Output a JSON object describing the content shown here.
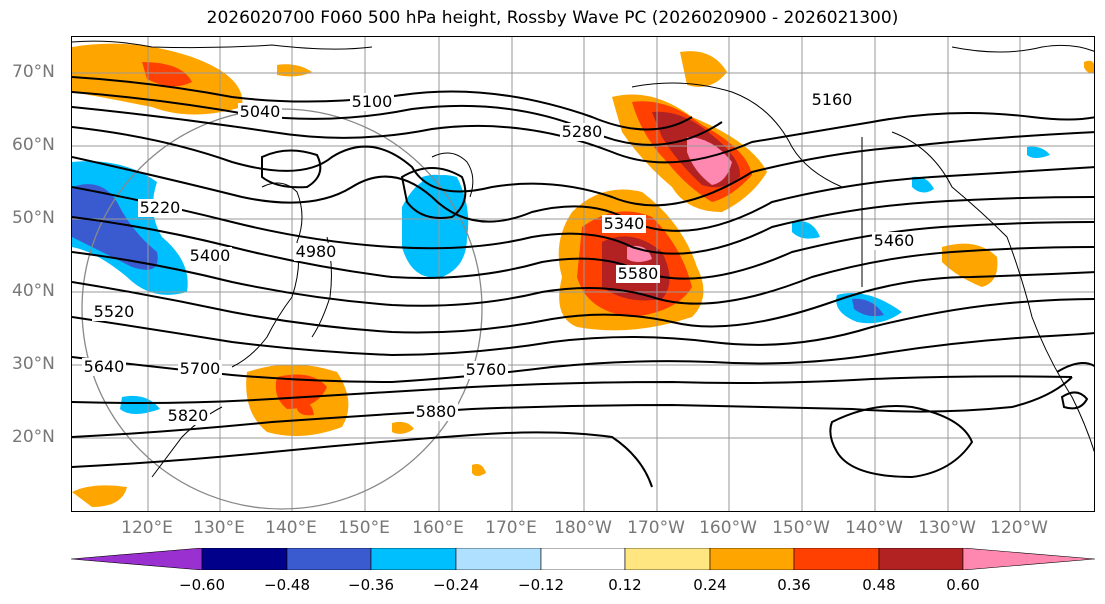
{
  "title": "2026020700 F060 500 hPa height, Rossby Wave PC (2026020900 - 2026021300)",
  "lat_labels": [
    "70°N",
    "60°N",
    "50°N",
    "40°N",
    "30°N",
    "20°N"
  ],
  "lon_labels": [
    "120°E",
    "130°E",
    "140°E",
    "150°E",
    "160°E",
    "170°E",
    "180°W",
    "170°W",
    "160°W",
    "150°W",
    "140°W",
    "130°W",
    "120°W"
  ],
  "contour_labels": [
    "4980",
    "5040",
    "5100",
    "5160",
    "5220",
    "5280",
    "5340",
    "5400",
    "5460",
    "5520",
    "5580",
    "5640",
    "5700",
    "5760",
    "5820",
    "5880"
  ],
  "colorbar": {
    "ticks": [
      "−0.60",
      "−0.48",
      "−0.36",
      "−0.24",
      "−0.12",
      "0.12",
      "0.24",
      "0.36",
      "0.48",
      "0.60"
    ],
    "colors": [
      "#9b30d0",
      "#00008b",
      "#3a5bd0",
      "#00bfff",
      "#b0e0ff",
      "#ffffff",
      "#ffe680",
      "#ffa500",
      "#ff4000",
      "#b22222",
      "#ff88b0"
    ]
  }
}
